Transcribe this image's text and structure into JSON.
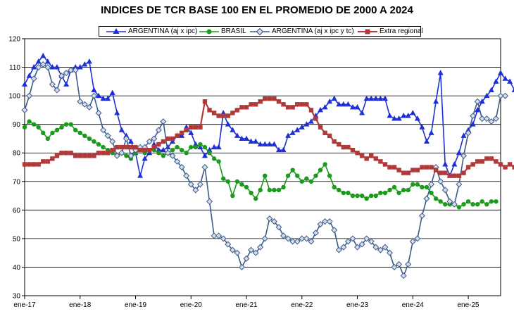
{
  "chart_data": {
    "type": "line",
    "title": "INDICES DE TCR BASE 100 EN EL PROMEDIO DE 2000 A 2024",
    "xlabel": "",
    "ylabel": "",
    "ylim": [
      30,
      120
    ],
    "yticks": [
      30,
      40,
      50,
      60,
      70,
      80,
      90,
      100,
      110,
      120
    ],
    "x_tick_labels": [
      "ene-17",
      "ene-18",
      "ene-19",
      "ene-20",
      "ene-21",
      "ene-22",
      "ene-23",
      "ene-24",
      "ene-25"
    ],
    "x_tick_index": [
      0,
      12,
      24,
      36,
      48,
      60,
      72,
      84,
      96
    ],
    "x_range": [
      0,
      103
    ],
    "grid": "horizontal",
    "legend_position": "top",
    "series": [
      {
        "name": "ARGENTINA (aj x ipc)",
        "color": "#1f2fd6",
        "marker": "triangle",
        "start_index": 0,
        "values": [
          104,
          107,
          110,
          112,
          114,
          112,
          110,
          110,
          107,
          104,
          109,
          110,
          110,
          111,
          112,
          102,
          100,
          99,
          99,
          101,
          94,
          88,
          86,
          84,
          80,
          72,
          78,
          80,
          83,
          81,
          81,
          82,
          84,
          86,
          86,
          89,
          87,
          83,
          82,
          79,
          81,
          82,
          82,
          94,
          90,
          88,
          86,
          85,
          85,
          84,
          84,
          83,
          83,
          83,
          83,
          81,
          81,
          86,
          87,
          88,
          89,
          90,
          91,
          93,
          95,
          96,
          98,
          99,
          97,
          97,
          97,
          96,
          96,
          94,
          99,
          99,
          99,
          99,
          99,
          93,
          92,
          92,
          93,
          93,
          94,
          92,
          89,
          84,
          87,
          98,
          108,
          76,
          72,
          76,
          80,
          86,
          88,
          90,
          95,
          98,
          100,
          102,
          105,
          108,
          106,
          105,
          102,
          100
        ],
        "values_note": ""
      },
      {
        "name": "BRASIL",
        "color": "#1c9a1c",
        "marker": "circle",
        "start_index": 0,
        "values": [
          89,
          91,
          90,
          89,
          87,
          85,
          87,
          88,
          89,
          90,
          90,
          88,
          87,
          86,
          85,
          84,
          83,
          82,
          81,
          80,
          79,
          80,
          79,
          78,
          80,
          81,
          80,
          81,
          81,
          80,
          79,
          80,
          81,
          82,
          81,
          80,
          82,
          82,
          83,
          82,
          80,
          78,
          77,
          71,
          70,
          65,
          70,
          69,
          68,
          66,
          64,
          67,
          72,
          67,
          67,
          67,
          68,
          72,
          74,
          72,
          70,
          71,
          70,
          72,
          74,
          76,
          72,
          68,
          67,
          66,
          66,
          65,
          65,
          65,
          64,
          65,
          65,
          66,
          66,
          67,
          68,
          66,
          67,
          67,
          69,
          69,
          68,
          68,
          66,
          64,
          63,
          62,
          62,
          62,
          61,
          62,
          63,
          62,
          62,
          63,
          62,
          63,
          63
        ],
        "values_note": ""
      },
      {
        "name": "ARGENTINA (aj x ipc y tc)",
        "color": "#3a5a8c",
        "marker": "diamond",
        "start_index": 0,
        "values": [
          95,
          100,
          106,
          110,
          111,
          110,
          104,
          102,
          107,
          108,
          109,
          109,
          98,
          97,
          96,
          100,
          94,
          88,
          86,
          84,
          79,
          80,
          85,
          79,
          81,
          82,
          82,
          84,
          85,
          88,
          91,
          80,
          79,
          77,
          75,
          72,
          69,
          67,
          69,
          75,
          63,
          51,
          51,
          50,
          48,
          46,
          45,
          40,
          43,
          46,
          45,
          47,
          50,
          57,
          56,
          54,
          51,
          50,
          49,
          49,
          50,
          50,
          49,
          52,
          55,
          56,
          56,
          53,
          46,
          47,
          49,
          50,
          47,
          48,
          50,
          49,
          47,
          46,
          47,
          45,
          40,
          41,
          37,
          41,
          49,
          50,
          58,
          64,
          69,
          75,
          70,
          67,
          63,
          62,
          69,
          79,
          87,
          93,
          98,
          92,
          92,
          91,
          92,
          100,
          100
        ]
      },
      {
        "name": "Extra regional",
        "color": "#b03a3a",
        "marker": "square",
        "start_index": 0,
        "values": [
          76,
          76,
          76,
          76,
          77,
          77,
          78,
          79,
          80,
          80,
          80,
          79,
          79,
          79,
          79,
          79,
          80,
          80,
          80,
          81,
          82,
          82,
          82,
          82,
          82,
          81,
          81,
          81,
          82,
          83,
          84,
          85,
          85,
          86,
          87,
          88,
          89,
          89,
          89,
          98,
          95,
          94,
          93,
          93,
          93,
          94,
          95,
          96,
          96,
          97,
          97,
          98,
          99,
          99,
          99,
          98,
          97,
          96,
          96,
          97,
          97,
          97,
          95,
          92,
          89,
          87,
          86,
          84,
          83,
          82,
          82,
          81,
          80,
          79,
          78,
          79,
          78,
          77,
          76,
          75,
          75,
          74,
          73,
          73,
          74,
          74,
          75,
          75,
          75,
          74,
          73,
          73,
          72,
          72,
          72,
          73,
          75,
          76,
          77,
          77,
          78,
          78,
          77,
          76,
          75,
          76,
          75
        ]
      }
    ]
  }
}
